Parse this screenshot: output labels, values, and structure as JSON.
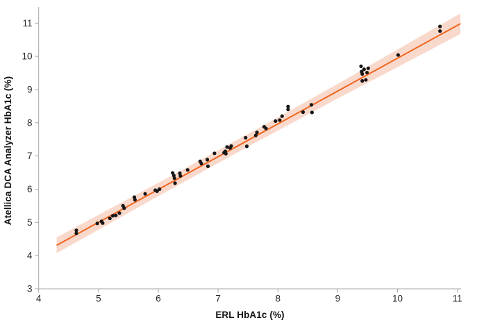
{
  "chart_data": {
    "type": "scatter",
    "title": "",
    "xlabel": "ERL HbA1c (%)",
    "ylabel": "Atellica DCA Analyzer HbA1c (%)",
    "xlim": [
      4,
      11.06
    ],
    "ylim": [
      3,
      11.35
    ],
    "x_ticks": [
      4,
      5,
      6,
      7,
      8,
      9,
      10,
      11
    ],
    "y_ticks": [
      3,
      4,
      5,
      6,
      7,
      8,
      9,
      10,
      11
    ],
    "grid": false,
    "legend": "none",
    "axis_color": "#A6A6A6",
    "tick_label_color": "#262626",
    "series": [
      {
        "name": "confidence-band",
        "type": "band",
        "color": "#F9D9CC",
        "x": [
          4.3,
          6.0,
          7.6,
          9.0,
          11.06
        ],
        "upper": [
          4.55,
          6.19,
          7.76,
          9.17,
          11.3
        ],
        "lower": [
          4.07,
          5.79,
          7.38,
          8.73,
          10.68
        ]
      },
      {
        "name": "regression-line",
        "type": "line",
        "color": "#F1661F",
        "width": 2,
        "x": [
          4.3,
          11.06
        ],
        "y": [
          4.31,
          10.99
        ]
      },
      {
        "name": "measurements",
        "type": "scatter",
        "color": "#161616",
        "radius": 2.6,
        "points": [
          [
            4.63,
            4.76
          ],
          [
            4.63,
            4.67
          ],
          [
            4.98,
            4.97
          ],
          [
            5.05,
            5.03
          ],
          [
            5.07,
            4.98
          ],
          [
            5.19,
            5.12
          ],
          [
            5.24,
            5.2
          ],
          [
            5.29,
            5.21
          ],
          [
            5.35,
            5.28
          ],
          [
            5.41,
            5.5
          ],
          [
            5.43,
            5.43
          ],
          [
            5.6,
            5.76
          ],
          [
            5.61,
            5.68
          ],
          [
            5.78,
            5.86
          ],
          [
            5.95,
            5.97
          ],
          [
            5.98,
            5.94
          ],
          [
            6.02,
            6.0
          ],
          [
            6.24,
            6.49
          ],
          [
            6.26,
            6.41
          ],
          [
            6.27,
            6.33
          ],
          [
            6.28,
            6.18
          ],
          [
            6.36,
            6.48
          ],
          [
            6.37,
            6.4
          ],
          [
            6.49,
            6.58
          ],
          [
            6.7,
            6.84
          ],
          [
            6.72,
            6.77
          ],
          [
            6.82,
            6.89
          ],
          [
            6.83,
            6.69
          ],
          [
            6.94,
            7.08
          ],
          [
            7.1,
            7.1
          ],
          [
            7.12,
            7.14
          ],
          [
            7.13,
            7.07
          ],
          [
            7.15,
            7.27
          ],
          [
            7.2,
            7.24
          ],
          [
            7.22,
            7.3
          ],
          [
            7.46,
            7.55
          ],
          [
            7.48,
            7.29
          ],
          [
            7.63,
            7.62
          ],
          [
            7.65,
            7.71
          ],
          [
            7.77,
            7.88
          ],
          [
            7.8,
            7.83
          ],
          [
            7.96,
            8.05
          ],
          [
            8.03,
            8.08
          ],
          [
            8.07,
            8.2
          ],
          [
            8.17,
            8.49
          ],
          [
            8.17,
            8.4
          ],
          [
            8.42,
            8.32
          ],
          [
            8.56,
            8.54
          ],
          [
            8.57,
            8.31
          ],
          [
            9.39,
            9.7
          ],
          [
            9.4,
            9.54
          ],
          [
            9.41,
            9.47
          ],
          [
            9.41,
            9.26
          ],
          [
            9.44,
            9.61
          ],
          [
            9.47,
            9.29
          ],
          [
            9.49,
            9.51
          ],
          [
            9.51,
            9.64
          ],
          [
            10.01,
            10.04
          ],
          [
            10.71,
            10.9
          ],
          [
            10.71,
            10.76
          ]
        ]
      }
    ]
  }
}
